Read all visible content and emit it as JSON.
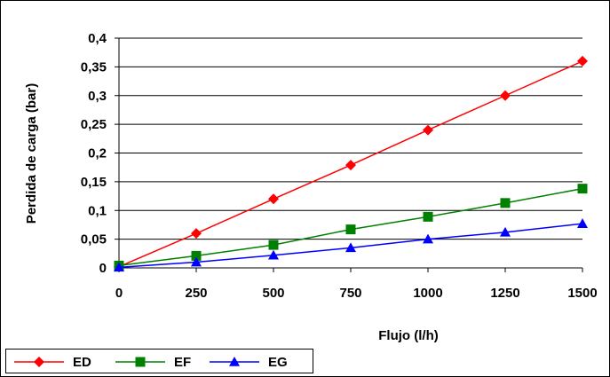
{
  "chart_data": {
    "type": "line",
    "title": "",
    "xlabel": "Flujo (l/h)",
    "ylabel": "Perdida de carga (bar)",
    "xlim": [
      0,
      1500
    ],
    "ylim": [
      0,
      0.4
    ],
    "x_ticks": [
      "0",
      "250",
      "500",
      "750",
      "1000",
      "1250",
      "1500"
    ],
    "y_ticks": [
      "0",
      "0,05",
      "0,1",
      "0,15",
      "0,2",
      "0,25",
      "0,3",
      "0,35",
      "0,4"
    ],
    "grid": "horizontal",
    "legend_position": "bottom-left",
    "x": [
      0,
      250,
      500,
      750,
      1000,
      1250,
      1500
    ],
    "series": [
      {
        "name": "ED",
        "marker": "diamond",
        "color": "#ff0000",
        "values": [
          0.002,
          0.06,
          0.12,
          0.179,
          0.24,
          0.3,
          0.36
        ]
      },
      {
        "name": "EF",
        "marker": "square",
        "color": "#008000",
        "values": [
          0.004,
          0.021,
          0.04,
          0.067,
          0.089,
          0.113,
          0.138
        ]
      },
      {
        "name": "EG",
        "marker": "triangle",
        "color": "#0000ff",
        "values": [
          0.001,
          0.01,
          0.022,
          0.035,
          0.05,
          0.062,
          0.077
        ]
      }
    ]
  }
}
